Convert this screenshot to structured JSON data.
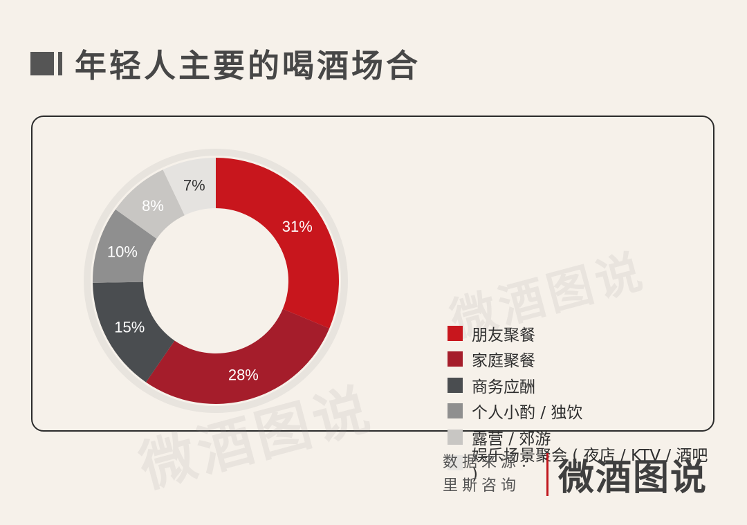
{
  "title": "年轻人主要的喝酒场合",
  "footer": {
    "source_label": "数据来源：",
    "source_name": "里斯咨询",
    "brand": "微酒图说"
  },
  "watermark": "微酒图说",
  "chart_data": {
    "type": "pie",
    "donut": true,
    "categories": [
      "朋友聚餐",
      "家庭聚餐",
      "商务应酬",
      "个人小酌 / 独饮",
      "露营 / 郊游",
      "娱乐场景聚会 ( 夜店 / KTV / 酒吧 )"
    ],
    "values": [
      31,
      28,
      15,
      10,
      8,
      7
    ],
    "value_labels": [
      "31%",
      "28%",
      "15%",
      "10%",
      "8%",
      "7%"
    ],
    "colors": [
      "#c8161d",
      "#a51d2b",
      "#4a4d50",
      "#8f8f8f",
      "#c8c6c3",
      "#e5e3e0"
    ],
    "label_colors": [
      "#ffffff",
      "#ffffff",
      "#ffffff",
      "#ffffff",
      "#ffffff",
      "#333333"
    ],
    "legend_position": "right"
  }
}
